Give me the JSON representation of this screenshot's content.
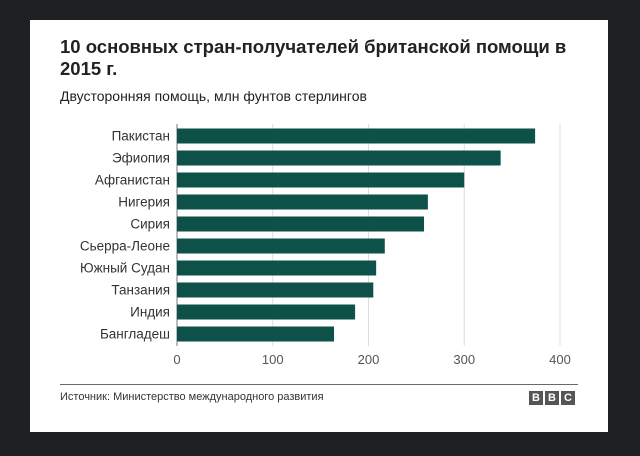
{
  "chart_data": {
    "type": "bar",
    "orientation": "horizontal",
    "title": "10 основных стран-получателей британской помощи в 2015 г.",
    "subtitle": "Двусторонняя помощь, млн фунтов стерлингов",
    "categories": [
      "Пакистан",
      "Эфиопия",
      "Афганистан",
      "Нигерия",
      "Сирия",
      "Сьерра-Леоне",
      "Южный Судан",
      "Танзания",
      "Индия",
      "Бангладеш"
    ],
    "values": [
      374,
      338,
      300,
      262,
      258,
      217,
      208,
      205,
      186,
      164
    ],
    "xlim": [
      0,
      400
    ],
    "xticks": [
      0,
      100,
      200,
      300,
      400
    ],
    "xticklabels": [
      "0",
      "100",
      "200",
      "300",
      "400"
    ],
    "grid": true,
    "bar_color": "#0e5149"
  },
  "footer": {
    "source": "Источник: Министерство международного развития",
    "logo_letters": [
      "B",
      "B",
      "C"
    ]
  }
}
